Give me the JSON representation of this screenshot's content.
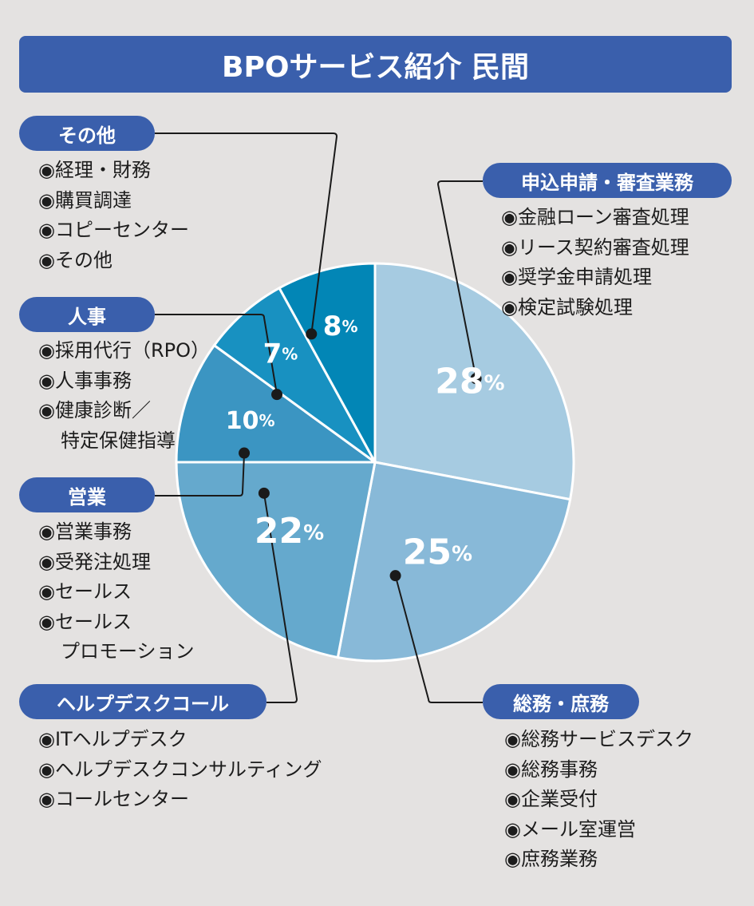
{
  "title": "BPOサービス紹介 民間",
  "colors": {
    "accent": "#3a5fac",
    "background": "#e4e2e1",
    "leader": "#1a1a1a"
  },
  "chart_data": {
    "type": "pie",
    "title": "BPOサービス紹介 民間",
    "slices": [
      {
        "label": "申込申請・審査業務",
        "value": 28,
        "display": "28",
        "color": "#a6cbe1"
      },
      {
        "label": "総務・庶務",
        "value": 25,
        "display": "25",
        "color": "#88b9d8"
      },
      {
        "label": "ヘルプデスクコール",
        "value": 22,
        "display": "22",
        "color": "#65a9cd"
      },
      {
        "label": "営業",
        "value": 10,
        "display": "10",
        "color": "#3b95c2"
      },
      {
        "label": "人事",
        "value": 7,
        "display": "7",
        "color": "#1891c1"
      },
      {
        "label": "その他",
        "value": 8,
        "display": "8",
        "color": "#0286b6"
      }
    ],
    "unit": "%"
  },
  "categories": [
    {
      "name": "申込申請・審査業務",
      "items": [
        "◉金融ローン審査処理",
        "◉リース契約審査処理",
        "◉奨学金申請処理",
        "◉検定試験処理"
      ]
    },
    {
      "name": "総務・庶務",
      "items": [
        "◉総務サービスデスク",
        "◉総務事務",
        "◉企業受付",
        "◉メール室運営",
        "◉庶務業務"
      ]
    },
    {
      "name": "ヘルプデスクコール",
      "items": [
        "◉ITヘルプデスク",
        "◉ヘルプデスクコンサルティング",
        "◉コールセンター"
      ]
    },
    {
      "name": "営業",
      "items": [
        "◉営業事務",
        "◉受発注処理",
        "◉セールス",
        "◉セールス",
        "プロモーション"
      ]
    },
    {
      "name": "人事",
      "items": [
        "◉採用代行（RPO）",
        "◉人事事務",
        "◉健康診断／",
        "特定保健指導"
      ]
    },
    {
      "name": "その他",
      "items": [
        "◉経理・財務",
        "◉購買調達",
        "◉コピーセンター",
        "◉その他"
      ]
    }
  ]
}
